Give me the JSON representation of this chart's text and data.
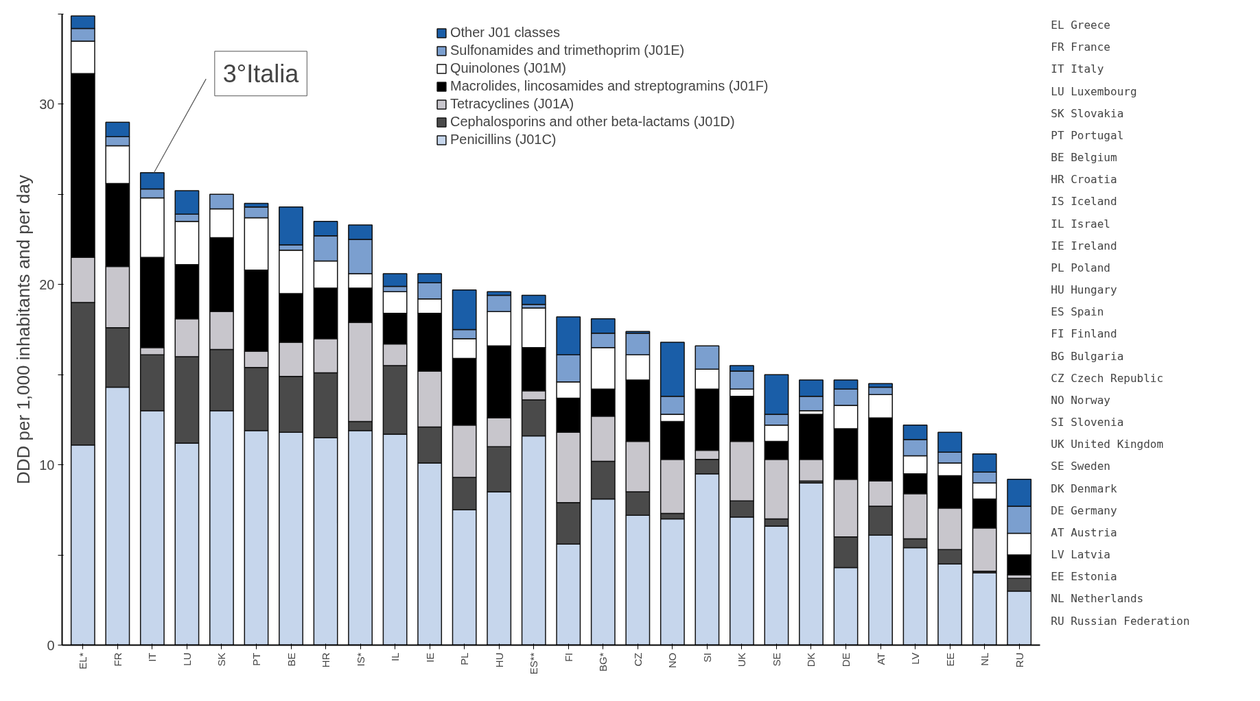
{
  "chart_data": {
    "type": "bar",
    "stacked": true,
    "ylabel": "DDD per 1,000 inhabitants and per day",
    "categories": [
      "EL*",
      "FR",
      "IT",
      "LU",
      "SK",
      "PT",
      "BE",
      "HR",
      "IS*",
      "IL",
      "IE",
      "PL",
      "HU",
      "ES**",
      "FI",
      "BG*",
      "CZ",
      "NO",
      "SI",
      "UK",
      "SE",
      "DK",
      "DE",
      "AT",
      "LV",
      "EE",
      "NL",
      "RU"
    ],
    "series": [
      {
        "name": "Penicillins (J01C)",
        "color": "#c6d6ec",
        "values": [
          11.1,
          14.3,
          13.0,
          11.2,
          13.0,
          11.9,
          11.8,
          11.5,
          11.9,
          11.7,
          10.1,
          7.5,
          8.5,
          11.6,
          5.6,
          8.1,
          7.2,
          7.0,
          9.5,
          7.1,
          6.6,
          9.0,
          4.3,
          6.1,
          5.4,
          4.5,
          4.0,
          3.0
        ]
      },
      {
        "name": "Cephalosporins and other beta-lactams (J01D)",
        "color": "#4a4a4a",
        "values": [
          7.9,
          3.3,
          3.1,
          4.8,
          3.4,
          3.5,
          3.1,
          3.6,
          0.5,
          3.8,
          2.0,
          1.8,
          2.5,
          2.0,
          2.3,
          2.1,
          1.3,
          0.3,
          0.8,
          0.9,
          0.4,
          0.1,
          1.7,
          1.6,
          0.5,
          0.8,
          0.1,
          0.7
        ]
      },
      {
        "name": "Tetracyclines (J01A)",
        "color": "#c8c6cc",
        "values": [
          2.5,
          3.4,
          0.4,
          2.1,
          2.1,
          0.9,
          1.9,
          1.9,
          5.5,
          1.2,
          3.1,
          2.9,
          1.6,
          0.5,
          3.9,
          2.5,
          2.8,
          3.0,
          0.5,
          3.3,
          3.3,
          1.2,
          3.2,
          1.4,
          2.5,
          2.3,
          2.4,
          0.2
        ]
      },
      {
        "name": "Macrolides, lincosamides and streptogramins (J01F)",
        "color": "#000000",
        "values": [
          10.2,
          4.6,
          5.0,
          3.0,
          4.1,
          4.5,
          2.7,
          2.8,
          1.9,
          1.7,
          3.2,
          3.7,
          4.0,
          2.4,
          1.9,
          1.5,
          3.4,
          2.1,
          3.4,
          2.5,
          1.0,
          2.5,
          2.8,
          3.5,
          1.1,
          1.8,
          1.6,
          1.1
        ]
      },
      {
        "name": "Quinolones (J01M)",
        "color": "#ffffff",
        "values": [
          1.8,
          2.1,
          3.3,
          2.4,
          1.6,
          2.9,
          2.4,
          1.5,
          0.8,
          1.2,
          0.8,
          1.1,
          1.9,
          2.2,
          0.9,
          2.3,
          1.4,
          0.4,
          1.1,
          0.4,
          0.9,
          0.2,
          1.3,
          1.3,
          1.0,
          0.7,
          0.9,
          1.2
        ]
      },
      {
        "name": "Sulfonamides and trimethoprim (J01E)",
        "color": "#7b9fcf",
        "values": [
          0.7,
          0.5,
          0.5,
          0.4,
          0.8,
          0.6,
          0.3,
          1.4,
          1.9,
          0.3,
          0.9,
          0.5,
          0.9,
          0.2,
          1.5,
          0.8,
          1.2,
          1.0,
          1.3,
          1.0,
          0.6,
          0.8,
          0.9,
          0.4,
          0.9,
          0.6,
          0.6,
          1.5
        ]
      },
      {
        "name": "Other J01 classes",
        "color": "#1a5ea8",
        "values": [
          0.7,
          0.8,
          0.9,
          1.3,
          null,
          0.2,
          2.1,
          0.8,
          0.8,
          0.7,
          0.5,
          2.2,
          0.2,
          0.5,
          2.1,
          0.8,
          0.1,
          3.0,
          null,
          0.3,
          2.2,
          0.9,
          0.5,
          0.2,
          0.8,
          1.1,
          1.0,
          1.5
        ]
      }
    ],
    "ylim": [
      0,
      35
    ],
    "yticks": [
      0,
      {
        "value": 5,
        "label": null
      },
      10,
      {
        "value": 15,
        "label": null
      },
      20,
      {
        "value": 25,
        "label": null
      },
      30,
      {
        "value": 35,
        "label": null
      }
    ],
    "grid": false,
    "legend": "top",
    "annotations": [
      {
        "text": "3°Italia",
        "x": "IT",
        "y": 26.2
      },
      "EL  Greece",
      "FR  France",
      "IT  Italy",
      "LU  Luxembourg",
      "SK  Slovakia",
      "PT  Portugal",
      "BE  Belgium",
      "HR  Croatia",
      "IS  Iceland",
      "IL  Israel",
      "IE  Ireland",
      "PL  Poland",
      "HU  Hungary",
      "ES  Spain",
      "FI  Finland",
      "BG  Bulgaria",
      "CZ  Czech Republic",
      "NO  Norway",
      "SI  Slovenia",
      "UK  United Kingdom",
      "SE  Sweden",
      "DK  Denmark",
      "DE  Germany",
      "AT  Austria",
      "LV  Latvia",
      "EE  Estonia",
      "NL  Netherlands",
      "RU  Russian Federation"
    ]
  }
}
